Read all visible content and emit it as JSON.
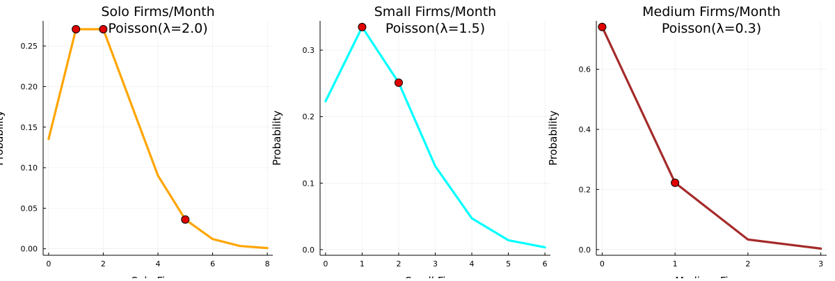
{
  "chart_data": [
    {
      "type": "line",
      "title": "Solo Firms/Month\nPoisson(λ=2.0)",
      "xlabel": "Solo Firms",
      "ylabel": "Probability",
      "x": [
        0,
        1,
        2,
        3,
        4,
        5,
        6,
        7,
        8
      ],
      "series": [
        {
          "values": [
            0.1353,
            0.2707,
            0.2707,
            0.1804,
            0.0902,
            0.0361,
            0.012,
            0.0034,
            0.0009
          ],
          "color": "#FFA500"
        }
      ],
      "markers": {
        "x": [
          1,
          2,
          5
        ],
        "y": [
          0.2707,
          0.2707,
          0.0361
        ],
        "color": "#E00000"
      },
      "xlim": [
        -0.2,
        8.2
      ],
      "ylim": [
        -0.008,
        0.281
      ],
      "xticks": [
        0,
        2,
        4,
        6,
        8
      ],
      "yticks": [
        0.0,
        0.05,
        0.1,
        0.15,
        0.2,
        0.25
      ],
      "ytick_labels": [
        "0.00",
        "0.05",
        "0.10",
        "0.15",
        "0.20",
        "0.25"
      ],
      "grid": true
    },
    {
      "type": "line",
      "title": "Small Firms/Month\nPoisson(λ=1.5)",
      "xlabel": "Small Firms",
      "ylabel": "Probability",
      "x": [
        0,
        1,
        2,
        3,
        4,
        5,
        6
      ],
      "series": [
        {
          "values": [
            0.2231,
            0.3347,
            0.251,
            0.1255,
            0.0471,
            0.0141,
            0.0035
          ],
          "color": "#00FFFF"
        }
      ],
      "markers": {
        "x": [
          1,
          2
        ],
        "y": [
          0.3347,
          0.251
        ],
        "color": "#E00000"
      },
      "xlim": [
        -0.15,
        6.15
      ],
      "ylim": [
        -0.0085,
        0.344
      ],
      "xticks": [
        0,
        1,
        2,
        3,
        4,
        5,
        6
      ],
      "yticks": [
        0.0,
        0.1,
        0.2,
        0.3
      ],
      "ytick_labels": [
        "0.0",
        "0.1",
        "0.2",
        "0.3"
      ],
      "grid": true
    },
    {
      "type": "line",
      "title": "Medium Firms/Month\nPoisson(λ=0.3)",
      "xlabel": "Medium Firms",
      "ylabel": "Probability",
      "x": [
        0,
        1,
        2,
        3
      ],
      "series": [
        {
          "values": [
            0.7408,
            0.2222,
            0.0333,
            0.0033
          ],
          "color": "#A52A2A"
        }
      ],
      "markers": {
        "x": [
          0,
          1
        ],
        "y": [
          0.7408,
          0.2222
        ],
        "color": "#E00000"
      },
      "xlim": [
        -0.08,
        3.08
      ],
      "ylim": [
        -0.019,
        0.761
      ],
      "xticks": [
        0,
        1,
        2,
        3
      ],
      "yticks": [
        0.0,
        0.2,
        0.4,
        0.6
      ],
      "ytick_labels": [
        "0.0",
        "0.2",
        "0.4",
        "0.6"
      ],
      "grid": true
    }
  ]
}
